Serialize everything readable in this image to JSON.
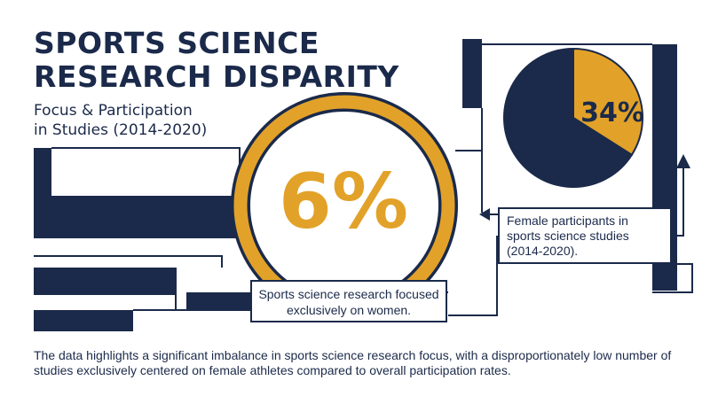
{
  "title": "SPORTS SCIENCE\nRESEARCH DISPARITY",
  "subtitle": "Focus & Participation\nin Studies (2014-2020)",
  "colors": {
    "navy": "#1b2a4a",
    "gold": "#e2a229",
    "background": "#ffffff"
  },
  "chart_data": [
    {
      "type": "gauge",
      "value": 6,
      "label": "6%",
      "description": "Sports science research focused exclusively on women."
    },
    {
      "type": "pie",
      "slices": [
        {
          "value": 34,
          "label": "34%",
          "color": "#e2a229"
        },
        {
          "value": 66,
          "label": "",
          "color": "#1b2a4a"
        }
      ],
      "description": "Female participants in sports science studies (2014-2020)."
    }
  ],
  "footnote": "The data highlights a significant imbalance in sports science research focus, with a disproportionately low number of studies exclusively centered on female athletes compared to overall participation rates."
}
